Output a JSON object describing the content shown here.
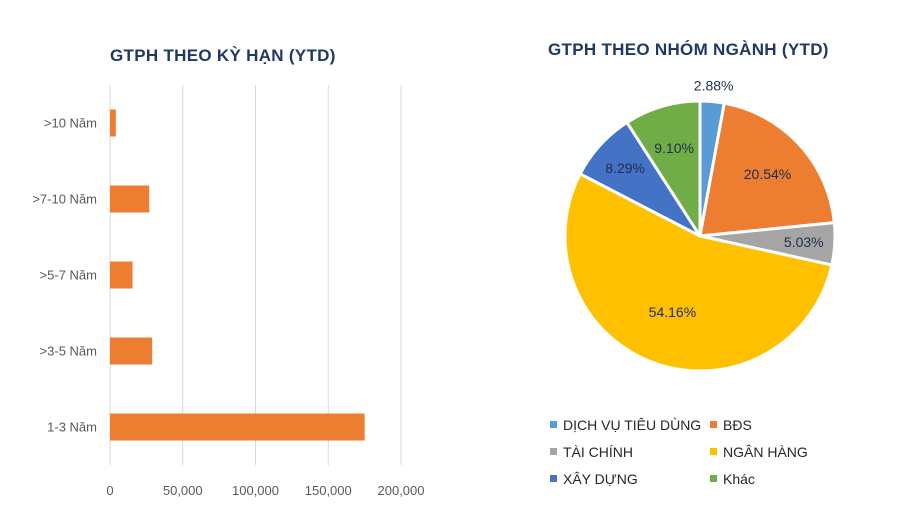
{
  "chart_data": [
    {
      "type": "bar",
      "orientation": "horizontal",
      "title": "GTPH THEO KỲ HẠN (YTD)",
      "categories": [
        ">10 Năm",
        ">7-10 Năm",
        ">5-7 Năm",
        ">3-5 Năm",
        "1-3 Năm"
      ],
      "values": [
        4000,
        27000,
        15500,
        29000,
        175000
      ],
      "xlim": [
        0,
        200000
      ],
      "xticks": [
        "0",
        "50,000",
        "100,000",
        "150,000",
        "200,000"
      ],
      "xtick_values": [
        0,
        50000,
        100000,
        150000,
        200000
      ],
      "grid": "vertical",
      "color": "#ed7d31"
    },
    {
      "type": "pie",
      "title": "GTPH THEO NHÓM NGÀNH (YTD)",
      "slices": [
        {
          "name": "DỊCH VỤ TIÊU DÙNG",
          "value": 2.88,
          "label": "2.88%",
          "color": "#5b9bd5"
        },
        {
          "name": "BĐS",
          "value": 20.54,
          "label": "20.54%",
          "color": "#ed7d31"
        },
        {
          "name": "TÀI CHÍNH",
          "value": 5.03,
          "label": "5.03%",
          "color": "#a5a5a5"
        },
        {
          "name": "NGÂN HÀNG",
          "value": 54.16,
          "label": "54.16%",
          "color": "#ffc000"
        },
        {
          "name": "XÂY DỰNG",
          "value": 8.29,
          "label": "8.29%",
          "color": "#4472c4"
        },
        {
          "name": "Khác",
          "value": 9.1,
          "label": "9.10%",
          "color": "#70ad47"
        }
      ],
      "legend_position": "bottom"
    }
  ]
}
